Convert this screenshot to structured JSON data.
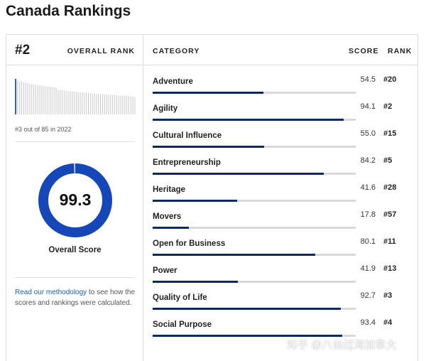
{
  "page": {
    "title": "Canada Rankings"
  },
  "overall": {
    "rank": "#2",
    "rank_label": "OVERALL RANK",
    "history_caption": "#3 out of 85 in 2022",
    "score": "99.3",
    "score_fraction": 0.993,
    "score_label": "Overall Score",
    "methodology_link": "Read our methodology",
    "methodology_text": " to see how the scores and rankings were calculated."
  },
  "table": {
    "headers": {
      "category": "CATEGORY",
      "score": "SCORE",
      "rank": "RANK"
    },
    "rows": [
      {
        "name": "Adventure",
        "score": "54.5",
        "rank": "#20"
      },
      {
        "name": "Agility",
        "score": "94.1",
        "rank": "#2"
      },
      {
        "name": "Cultural Influence",
        "score": "55.0",
        "rank": "#15"
      },
      {
        "name": "Entrepreneurship",
        "score": "84.2",
        "rank": "#5"
      },
      {
        "name": "Heritage",
        "score": "41.6",
        "rank": "#28"
      },
      {
        "name": "Movers",
        "score": "17.8",
        "rank": "#57"
      },
      {
        "name": "Open for Business",
        "score": "80.1",
        "rank": "#11"
      },
      {
        "name": "Power",
        "score": "41.9",
        "rank": "#13"
      },
      {
        "name": "Quality of Life",
        "score": "92.7",
        "rank": "#3"
      },
      {
        "name": "Social Purpose",
        "score": "93.4",
        "rank": "#4"
      }
    ]
  },
  "colors": {
    "accent": "#0a2a6e",
    "donut": "#1547b8",
    "link": "#1f5ea8",
    "track": "#d9d9d9"
  },
  "watermark": "知乎 @八仙过海加拿大"
}
